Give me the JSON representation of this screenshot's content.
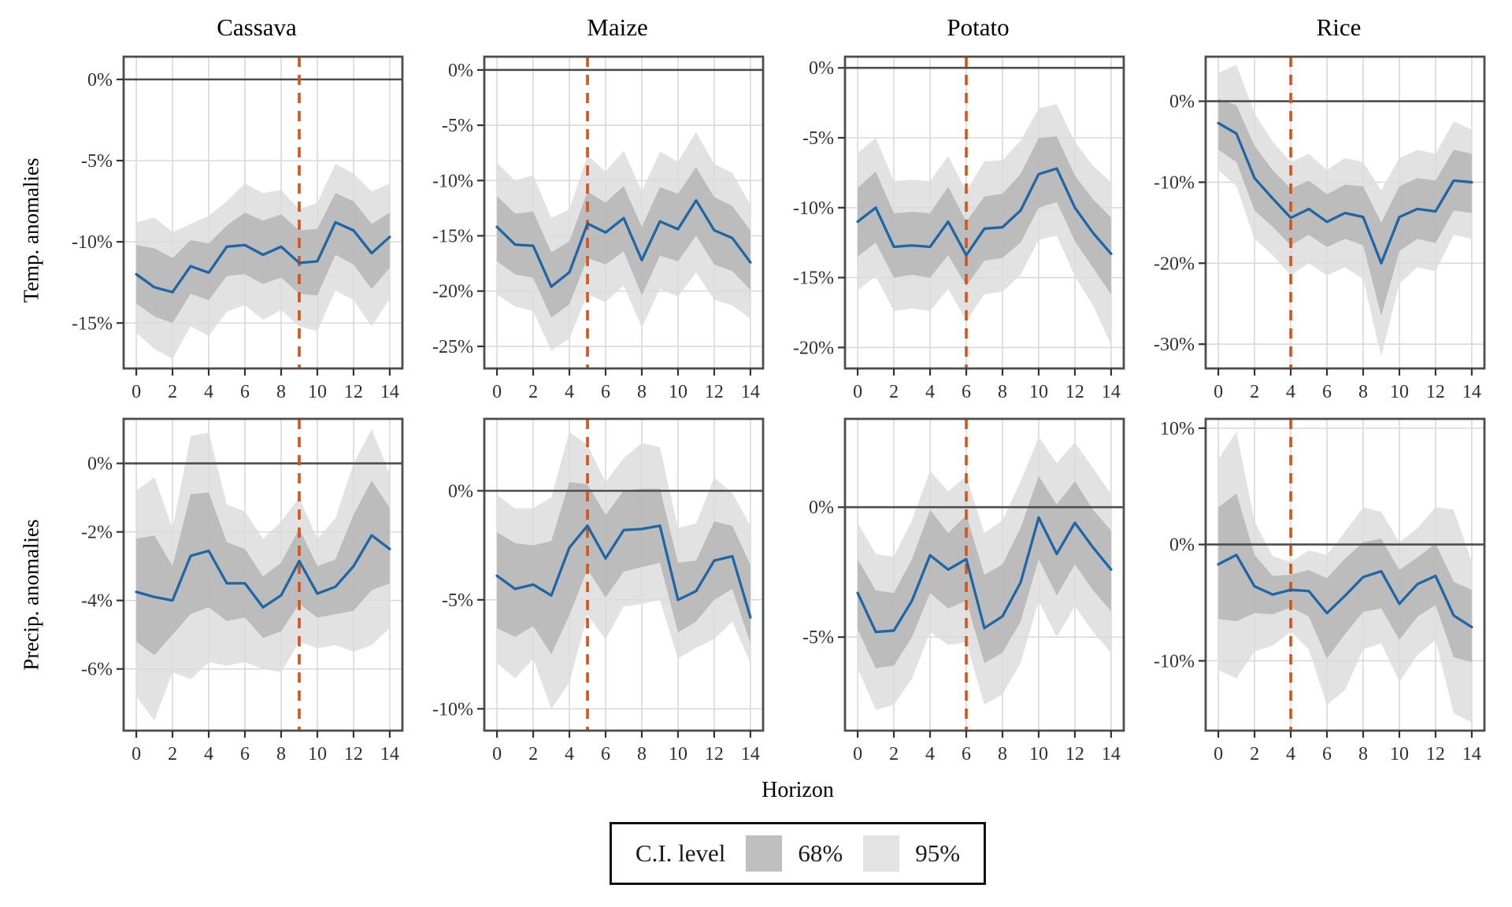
{
  "chart_data": {
    "type": "line",
    "layout": "faceted 2x4 small multiples with confidence ribbons",
    "xlabel": "Horizon",
    "x": [
      0,
      1,
      2,
      3,
      4,
      5,
      6,
      7,
      8,
      9,
      10,
      11,
      12,
      13,
      14
    ],
    "x_ticks": [
      0,
      2,
      4,
      6,
      8,
      10,
      12,
      14
    ],
    "xlim": [
      -0.7,
      14.7
    ],
    "columns": [
      "Cassava",
      "Maize",
      "Potato",
      "Rice"
    ],
    "rows": [
      "Temp. anomalies",
      "Precip. anomalies"
    ],
    "legend": {
      "title": "C.I. level",
      "entries": [
        {
          "label": "68%",
          "color": "#bfbfbf"
        },
        {
          "label": "95%",
          "color": "#e3e3e3"
        }
      ]
    },
    "colors": {
      "line": "#1f66a5",
      "event_line": "#d4541a",
      "band68": "#b3b3b3",
      "band95": "#dcdcdc",
      "zero_line": "#4d4d4d",
      "grid": "#d9d9d9",
      "border": "#4d4d4d",
      "text": "#303030"
    },
    "panels": [
      {
        "row": "Temp. anomalies",
        "col": "Cassava",
        "dashed_x": 9,
        "ylim": [
          1.4,
          -17.8
        ],
        "y_tick_values": [
          0,
          -5,
          -10,
          -15
        ],
        "y_tick_labels": [
          "0%",
          "-5%",
          "-10%",
          "-15%"
        ],
        "line": [
          -12.0,
          -12.8,
          -13.1,
          -11.5,
          -11.9,
          -10.3,
          -10.2,
          -10.8,
          -10.3,
          -11.3,
          -11.2,
          -8.8,
          -9.3,
          -10.7,
          -9.7
        ],
        "hi68": [
          -10.2,
          -10.4,
          -11.0,
          -9.9,
          -10.1,
          -9.0,
          -8.2,
          -8.7,
          -8.3,
          -9.3,
          -9.2,
          -7.0,
          -7.5,
          -8.9,
          -8.2
        ],
        "lo68": [
          -13.8,
          -14.6,
          -15.0,
          -13.2,
          -13.6,
          -12.1,
          -12.0,
          -12.6,
          -12.2,
          -13.2,
          -13.3,
          -10.8,
          -11.4,
          -12.9,
          -11.6
        ],
        "hi95": [
          -8.8,
          -8.5,
          -9.4,
          -8.9,
          -8.4,
          -7.5,
          -6.4,
          -7.0,
          -6.8,
          -8.0,
          -7.6,
          -5.2,
          -5.8,
          -6.9,
          -6.4
        ],
        "lo95": [
          -15.6,
          -16.6,
          -17.2,
          -15.2,
          -15.8,
          -14.3,
          -13.9,
          -14.8,
          -14.2,
          -15.2,
          -15.5,
          -13.0,
          -13.6,
          -15.2,
          -13.5
        ]
      },
      {
        "row": "Temp. anomalies",
        "col": "Maize",
        "dashed_x": 5,
        "ylim": [
          1.2,
          -27.0
        ],
        "y_tick_values": [
          0,
          -5,
          -10,
          -15,
          -20,
          -25
        ],
        "y_tick_labels": [
          "0%",
          "-5%",
          "-10%",
          "-15%",
          "-20%",
          "-25%"
        ],
        "line": [
          -14.2,
          -15.8,
          -15.9,
          -19.6,
          -18.3,
          -13.9,
          -14.7,
          -13.4,
          -17.2,
          -13.7,
          -14.4,
          -11.8,
          -14.5,
          -15.2,
          -17.4
        ],
        "hi68": [
          -11.4,
          -13.0,
          -12.8,
          -16.5,
          -15.5,
          -11.0,
          -12.0,
          -10.5,
          -14.2,
          -10.6,
          -11.2,
          -8.8,
          -11.5,
          -12.3,
          -14.5
        ],
        "lo68": [
          -17.3,
          -18.5,
          -18.8,
          -22.4,
          -21.2,
          -17.0,
          -17.6,
          -16.4,
          -20.4,
          -16.8,
          -17.3,
          -15.0,
          -17.6,
          -18.2,
          -19.9
        ],
        "hi95": [
          -8.4,
          -10.0,
          -9.5,
          -13.4,
          -12.6,
          -7.7,
          -9.2,
          -7.3,
          -11.0,
          -7.4,
          -8.3,
          -5.6,
          -8.5,
          -9.3,
          -12.2
        ],
        "lo95": [
          -20.3,
          -21.4,
          -21.8,
          -25.4,
          -24.3,
          -20.3,
          -21.0,
          -19.5,
          -23.3,
          -19.8,
          -20.5,
          -18.3,
          -20.8,
          -21.3,
          -22.5
        ]
      },
      {
        "row": "Temp. anomalies",
        "col": "Potato",
        "dashed_x": 6,
        "ylim": [
          0.8,
          -21.5
        ],
        "y_tick_values": [
          0,
          -5,
          -10,
          -15,
          -20
        ],
        "y_tick_labels": [
          "0%",
          "-5%",
          "-10%",
          "-15%",
          "-20%"
        ],
        "line": [
          -11.0,
          -10.0,
          -12.8,
          -12.7,
          -12.8,
          -11.0,
          -13.4,
          -11.5,
          -11.4,
          -10.2,
          -7.6,
          -7.2,
          -10.0,
          -11.8,
          -13.3
        ],
        "hi68": [
          -8.6,
          -7.4,
          -10.4,
          -10.3,
          -10.4,
          -8.5,
          -11.0,
          -9.2,
          -9.0,
          -7.6,
          -5.0,
          -4.9,
          -7.7,
          -9.4,
          -10.7
        ],
        "lo68": [
          -13.5,
          -12.5,
          -15.0,
          -14.8,
          -15.0,
          -13.4,
          -15.6,
          -13.8,
          -13.6,
          -12.5,
          -10.0,
          -9.6,
          -12.4,
          -14.3,
          -16.2
        ],
        "hi95": [
          -6.1,
          -5.0,
          -8.1,
          -8.0,
          -8.1,
          -6.3,
          -8.8,
          -6.7,
          -6.6,
          -5.2,
          -2.9,
          -2.6,
          -5.3,
          -7.0,
          -8.2
        ],
        "lo95": [
          -15.9,
          -14.9,
          -17.4,
          -17.2,
          -17.4,
          -15.8,
          -18.1,
          -16.2,
          -16.0,
          -14.8,
          -12.3,
          -12.0,
          -14.9,
          -17.0,
          -19.8
        ]
      },
      {
        "row": "Temp. anomalies",
        "col": "Rice",
        "dashed_x": 4,
        "ylim": [
          5.5,
          -33.0
        ],
        "y_tick_values": [
          0,
          -10,
          -20,
          -30
        ],
        "y_tick_labels": [
          "0%",
          "-10%",
          "-20%",
          "-30%"
        ],
        "line": [
          -2.7,
          -4.0,
          -9.5,
          -12.0,
          -14.4,
          -13.3,
          -14.9,
          -13.8,
          -14.3,
          -20.0,
          -14.3,
          -13.3,
          -13.6,
          -9.8,
          -10.0
        ],
        "hi68": [
          0.3,
          -0.5,
          -5.5,
          -8.5,
          -10.8,
          -9.8,
          -11.5,
          -10.3,
          -10.5,
          -15.0,
          -10.5,
          -9.5,
          -9.8,
          -6.0,
          -6.5
        ],
        "lo68": [
          -6.0,
          -7.5,
          -13.5,
          -15.5,
          -17.8,
          -16.5,
          -18.0,
          -17.0,
          -17.8,
          -26.5,
          -18.5,
          -17.0,
          -17.5,
          -13.5,
          -13.8
        ],
        "hi95": [
          3.5,
          4.5,
          -1.5,
          -5.0,
          -7.5,
          -6.5,
          -8.5,
          -7.0,
          -7.5,
          -11.0,
          -7.0,
          -6.0,
          -6.5,
          -2.5,
          -3.5
        ],
        "lo95": [
          -8.5,
          -10.5,
          -17.0,
          -19.0,
          -21.5,
          -20.0,
          -21.5,
          -20.5,
          -22.0,
          -31.5,
          -22.5,
          -20.5,
          -21.0,
          -16.5,
          -17.0
        ]
      },
      {
        "row": "Precip. anomalies",
        "col": "Cassava",
        "dashed_x": 9,
        "ylim": [
          1.3,
          -7.8
        ],
        "y_tick_values": [
          0,
          -2,
          -4,
          -6
        ],
        "y_tick_labels": [
          "0%",
          "-2%",
          "-4%",
          "-6%"
        ],
        "line": [
          -3.75,
          -3.9,
          -4.0,
          -2.7,
          -2.55,
          -3.5,
          -3.5,
          -4.2,
          -3.85,
          -2.85,
          -3.8,
          -3.6,
          -3.0,
          -2.1,
          -2.5
        ],
        "hi68": [
          -2.2,
          -2.1,
          -3.0,
          -0.9,
          -0.85,
          -2.3,
          -2.5,
          -3.3,
          -2.9,
          -1.9,
          -3.0,
          -2.8,
          -1.5,
          -0.5,
          -1.3
        ],
        "lo68": [
          -5.2,
          -5.6,
          -5.0,
          -4.4,
          -4.2,
          -4.6,
          -4.5,
          -5.1,
          -4.9,
          -4.1,
          -4.5,
          -4.4,
          -4.3,
          -3.7,
          -3.5
        ],
        "hi95": [
          -0.8,
          -0.4,
          -1.9,
          0.8,
          0.9,
          -1.2,
          -1.4,
          -2.2,
          -1.7,
          -1.0,
          -2.2,
          -1.6,
          0.0,
          1.0,
          -0.3
        ],
        "lo95": [
          -6.8,
          -7.5,
          -6.1,
          -6.3,
          -5.8,
          -5.9,
          -5.8,
          -6.0,
          -6.1,
          -5.2,
          -5.4,
          -5.3,
          -5.5,
          -5.3,
          -4.8
        ]
      },
      {
        "row": "Precip. anomalies",
        "col": "Maize",
        "dashed_x": 5,
        "ylim": [
          3.3,
          -11.0
        ],
        "y_tick_values": [
          0,
          -5,
          -10
        ],
        "y_tick_labels": [
          "0%",
          "-5%",
          "-10%"
        ],
        "line": [
          -3.9,
          -4.5,
          -4.3,
          -4.8,
          -2.6,
          -1.6,
          -3.1,
          -1.8,
          -1.75,
          -1.6,
          -5.0,
          -4.6,
          -3.2,
          -3.0,
          -5.8
        ],
        "hi68": [
          -1.9,
          -2.4,
          -2.5,
          -2.3,
          0.4,
          0.3,
          -1.1,
          0.0,
          0.1,
          0.1,
          -3.3,
          -3.2,
          -1.4,
          -1.6,
          -3.4
        ],
        "lo68": [
          -6.3,
          -6.7,
          -6.2,
          -7.5,
          -5.7,
          -3.6,
          -4.9,
          -3.7,
          -3.5,
          -3.3,
          -6.5,
          -6.0,
          -5.0,
          -4.5,
          -7.0
        ],
        "hi95": [
          -0.2,
          -0.8,
          -0.8,
          -0.3,
          2.7,
          2.1,
          0.4,
          1.5,
          2.2,
          2.0,
          -1.7,
          -1.5,
          0.6,
          -0.1,
          -1.6
        ],
        "lo95": [
          -7.9,
          -8.6,
          -7.7,
          -10.0,
          -8.8,
          -5.7,
          -6.8,
          -5.3,
          -5.2,
          -5.0,
          -7.7,
          -7.2,
          -6.8,
          -6.0,
          -7.9
        ]
      },
      {
        "row": "Precip. anomalies",
        "col": "Potato",
        "dashed_x": 6,
        "ylim": [
          3.4,
          -8.6
        ],
        "y_tick_values": [
          0,
          -5
        ],
        "y_tick_labels": [
          "0%",
          "-5%"
        ],
        "line": [
          -3.3,
          -4.8,
          -4.75,
          -3.6,
          -1.85,
          -2.4,
          -2.0,
          -4.65,
          -4.2,
          -2.9,
          -0.4,
          -1.8,
          -0.6,
          -1.55,
          -2.4
        ],
        "hi68": [
          -2.0,
          -3.2,
          -3.3,
          -2.0,
          -0.1,
          -1.0,
          -0.3,
          -2.6,
          -2.2,
          -0.8,
          1.2,
          0.1,
          1.0,
          -0.1,
          -0.9
        ],
        "lo68": [
          -4.7,
          -6.2,
          -6.1,
          -5.0,
          -3.3,
          -3.9,
          -3.6,
          -6.0,
          -5.6,
          -4.4,
          -2.0,
          -3.4,
          -2.2,
          -3.2,
          -4.0
        ],
        "hi95": [
          -0.6,
          -1.8,
          -1.9,
          -0.5,
          1.4,
          0.6,
          1.2,
          -1.0,
          -0.5,
          1.0,
          2.7,
          1.7,
          2.5,
          1.5,
          0.5
        ],
        "lo95": [
          -6.2,
          -7.8,
          -7.6,
          -6.6,
          -4.8,
          -5.3,
          -5.2,
          -7.6,
          -7.2,
          -6.0,
          -3.6,
          -5.0,
          -3.8,
          -4.8,
          -5.6
        ]
      },
      {
        "row": "Precip. anomalies",
        "col": "Rice",
        "dashed_x": 4,
        "ylim": [
          10.8,
          -16.0
        ],
        "y_tick_values": [
          10,
          0,
          -10
        ],
        "y_tick_labels": [
          "10%",
          "0%",
          "-10%"
        ],
        "line": [
          -1.7,
          -0.9,
          -3.6,
          -4.3,
          -3.9,
          -4.0,
          -5.9,
          -4.4,
          -2.8,
          -2.3,
          -5.1,
          -3.4,
          -2.7,
          -6.1,
          -7.1
        ],
        "hi68": [
          3.2,
          4.4,
          -0.9,
          -2.7,
          -2.6,
          -2.2,
          -2.9,
          -1.2,
          0.2,
          0.5,
          -2.2,
          -1.1,
          0.1,
          -3.2,
          -3.9
        ],
        "lo68": [
          -6.4,
          -6.6,
          -5.9,
          -6.0,
          -5.4,
          -6.2,
          -9.8,
          -7.7,
          -5.8,
          -5.5,
          -8.2,
          -6.2,
          -5.2,
          -9.7,
          -10.1
        ],
        "hi95": [
          7.3,
          9.7,
          2.0,
          -1.0,
          -1.5,
          -0.5,
          -0.9,
          1.1,
          3.2,
          2.8,
          0.2,
          1.4,
          3.2,
          3.0,
          -1.5
        ],
        "lo95": [
          -10.8,
          -11.5,
          -9.2,
          -8.7,
          -7.5,
          -9.0,
          -13.8,
          -12.5,
          -9.0,
          -8.5,
          -11.8,
          -9.5,
          -8.2,
          -14.5,
          -15.3
        ]
      }
    ]
  }
}
